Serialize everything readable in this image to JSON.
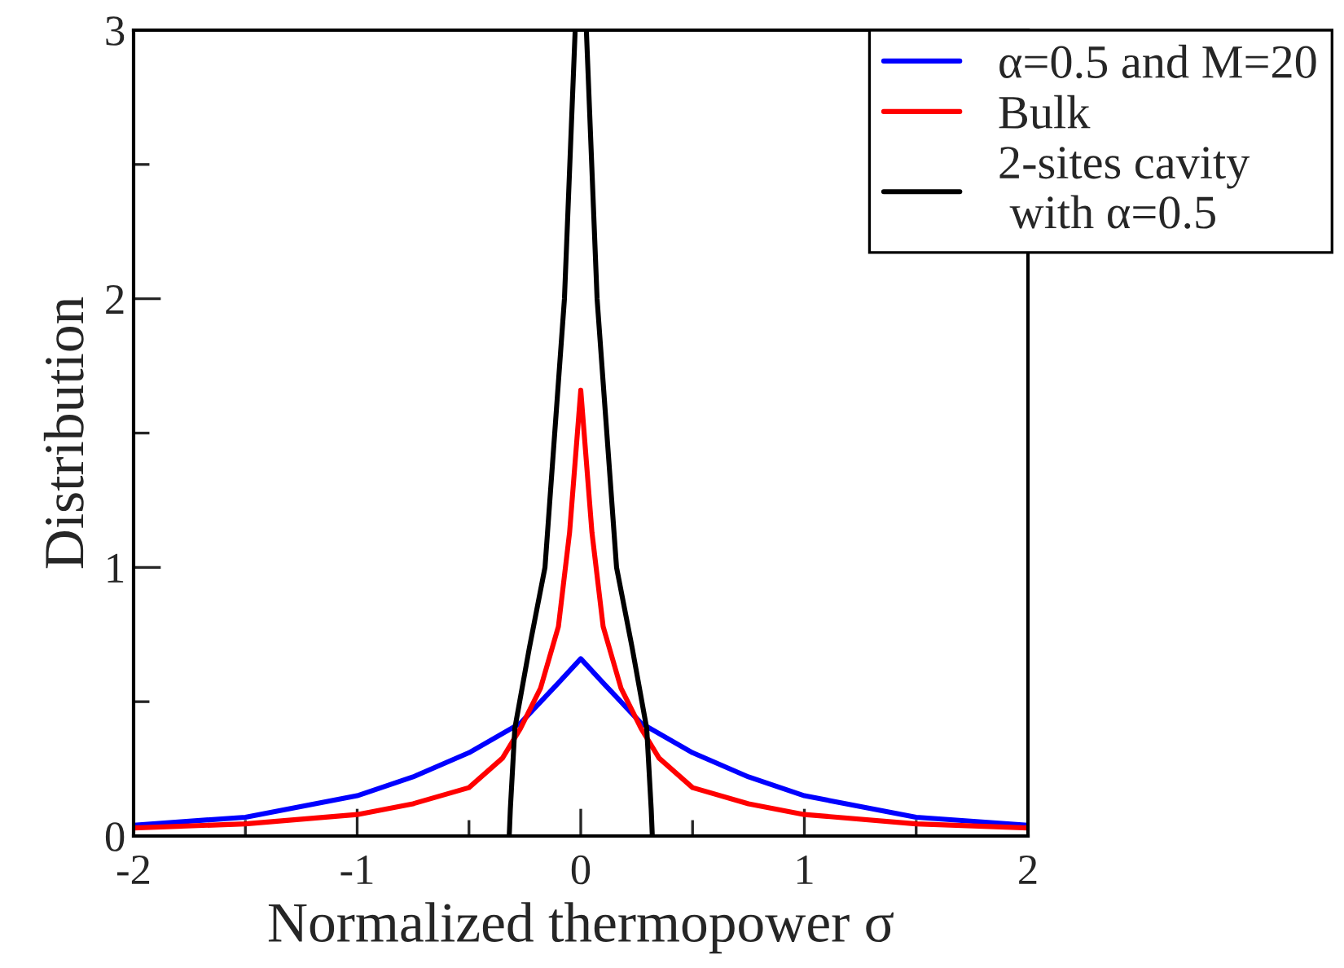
{
  "chart_data": {
    "type": "line",
    "xlabel": "Normalized thermopower σ",
    "ylabel": "Distribution",
    "xlim": [
      -2,
      2
    ],
    "ylim": [
      0,
      3
    ],
    "xticks": [
      -2,
      {
        "value": -1.5,
        "label": null
      },
      -1,
      {
        "value": -0.5,
        "label": null
      },
      0,
      {
        "value": 0.5,
        "label": null
      },
      1,
      {
        "value": 1.5,
        "label": null
      },
      2
    ],
    "yticks": [
      0,
      {
        "value": 0.5,
        "label": null
      },
      1,
      {
        "value": 1.5,
        "label": null
      },
      2,
      {
        "value": 2.5,
        "label": null
      },
      3
    ],
    "grid": false,
    "legend": "top right",
    "line_style": "solid",
    "marker": "none",
    "series": [
      {
        "name": "α=0.5 and M=20",
        "color": "#0000ff",
        "x": [
          -2,
          -1.5,
          -1,
          -0.75,
          -0.5,
          -0.27,
          -0.1,
          0,
          0.1,
          0.27,
          0.5,
          0.75,
          1,
          1.5,
          2
        ],
        "values": [
          0.04,
          0.07,
          0.15,
          0.22,
          0.31,
          0.42,
          0.57,
          0.66,
          0.57,
          0.42,
          0.31,
          0.22,
          0.15,
          0.07,
          0.04
        ]
      },
      {
        "name": "Bulk",
        "color": "#ff0000",
        "x": [
          -2,
          -1.5,
          -1,
          -0.75,
          -0.5,
          -0.35,
          -0.27,
          -0.18,
          -0.1,
          -0.05,
          0,
          0.05,
          0.1,
          0.18,
          0.27,
          0.35,
          0.5,
          0.75,
          1,
          1.5,
          2
        ],
        "values": [
          0.03,
          0.045,
          0.08,
          0.12,
          0.18,
          0.29,
          0.4,
          0.55,
          0.78,
          1.13,
          1.66,
          1.13,
          0.78,
          0.55,
          0.4,
          0.29,
          0.18,
          0.12,
          0.08,
          0.045,
          0.03
        ]
      },
      {
        "name": "2-sites cavity\n with α=0.5",
        "color": "#000000",
        "x": [
          -0.32,
          -0.315,
          -0.295,
          -0.23,
          -0.16,
          -0.073,
          -0.025,
          0,
          0.025,
          0.073,
          0.16,
          0.23,
          0.295,
          0.315,
          0.32
        ],
        "values": [
          0,
          0.1,
          0.4,
          0.7,
          1,
          2,
          3,
          null,
          3,
          2,
          1,
          0.7,
          0.4,
          0.1,
          0
        ]
      }
    ]
  }
}
